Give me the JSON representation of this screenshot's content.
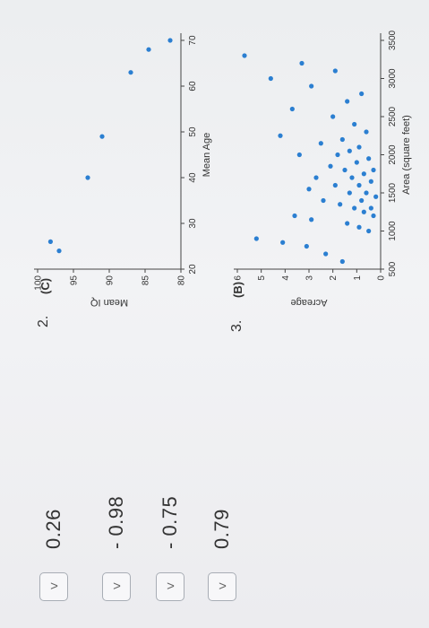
{
  "answers": [
    {
      "chevron": ">",
      "text": "0.26"
    },
    {
      "chevron": ">",
      "text": "- 0.98"
    },
    {
      "chevron": ">",
      "text": "- 0.75"
    },
    {
      "chevron": ">",
      "text": "0.79"
    }
  ],
  "icons": {
    "chevron": "chevron-right-icon"
  },
  "question2": {
    "number": "2.",
    "letter": "(C)"
  },
  "question3": {
    "number": "3.",
    "letter": "(B)"
  },
  "chart_data": [
    {
      "type": "scatter",
      "xlabel": "Mean Age",
      "ylabel": "Mean IQ",
      "xlim": [
        20,
        70
      ],
      "ylim": [
        80,
        100
      ],
      "xticks": [
        20,
        30,
        40,
        50,
        60,
        70
      ],
      "yticks": [
        80,
        85,
        90,
        95,
        100
      ],
      "color": "#2b7fd1",
      "points": [
        [
          24,
          97
        ],
        [
          26,
          98.2
        ],
        [
          40,
          93
        ],
        [
          49,
          91
        ],
        [
          63,
          87
        ],
        [
          68,
          84.5
        ],
        [
          70,
          81.5
        ]
      ]
    },
    {
      "type": "scatter",
      "xlabel": "Area (square feet)",
      "ylabel": "Acreage",
      "xlim": [
        500,
        3500
      ],
      "ylim": [
        0,
        6
      ],
      "xticks": [
        500,
        1000,
        1500,
        2000,
        2500,
        3000,
        3500
      ],
      "yticks": [
        0,
        1,
        2,
        3,
        4,
        5,
        6
      ],
      "color": "#2b7fd1",
      "points": [
        [
          600,
          1.6
        ],
        [
          700,
          2.3
        ],
        [
          800,
          3.1
        ],
        [
          850,
          4.1
        ],
        [
          900,
          5.2
        ],
        [
          1000,
          0.5
        ],
        [
          1050,
          0.9
        ],
        [
          1100,
          1.4
        ],
        [
          1150,
          2.9
        ],
        [
          1200,
          3.6
        ],
        [
          1200,
          0.3
        ],
        [
          1250,
          0.7
        ],
        [
          1300,
          1.1
        ],
        [
          1300,
          0.4
        ],
        [
          1350,
          1.7
        ],
        [
          1400,
          0.8
        ],
        [
          1400,
          2.4
        ],
        [
          1450,
          0.2
        ],
        [
          1500,
          1.3
        ],
        [
          1500,
          0.6
        ],
        [
          1550,
          3.0
        ],
        [
          1600,
          0.9
        ],
        [
          1600,
          1.9
        ],
        [
          1650,
          0.4
        ],
        [
          1700,
          2.7
        ],
        [
          1700,
          1.2
        ],
        [
          1750,
          0.7
        ],
        [
          1800,
          1.5
        ],
        [
          1800,
          0.3
        ],
        [
          1850,
          2.1
        ],
        [
          1900,
          1.0
        ],
        [
          1950,
          0.5
        ],
        [
          2000,
          1.8
        ],
        [
          2000,
          3.4
        ],
        [
          2050,
          1.3
        ],
        [
          2100,
          0.9
        ],
        [
          2150,
          2.5
        ],
        [
          2200,
          1.6
        ],
        [
          2250,
          4.2
        ],
        [
          2300,
          0.6
        ],
        [
          2400,
          1.1
        ],
        [
          2500,
          2.0
        ],
        [
          2600,
          3.7
        ],
        [
          2700,
          1.4
        ],
        [
          2800,
          0.8
        ],
        [
          2900,
          2.9
        ],
        [
          3000,
          4.6
        ],
        [
          3100,
          1.9
        ],
        [
          3200,
          3.3
        ],
        [
          3300,
          5.7
        ]
      ]
    }
  ]
}
